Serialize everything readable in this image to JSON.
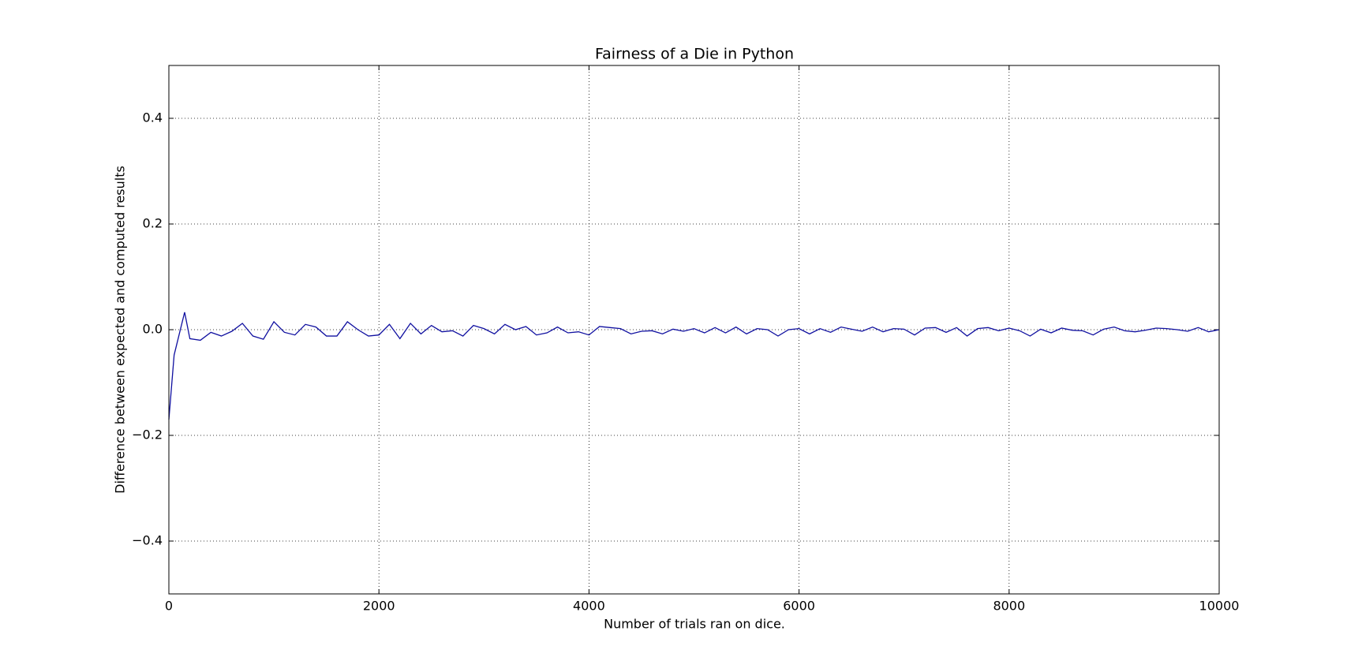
{
  "chart_data": {
    "type": "line",
    "title": "Fairness of a Die in Python",
    "xlabel": "Number of trials ran on dice.",
    "ylabel": "Difference between expected and computed results",
    "x": [
      0,
      50,
      150,
      200,
      300,
      400,
      500,
      600,
      700,
      800,
      900,
      1000,
      1100,
      1200,
      1300,
      1400,
      1500,
      1600,
      1700,
      1800,
      1900,
      2000,
      2100,
      2200,
      2300,
      2400,
      2500,
      2600,
      2700,
      2800,
      2900,
      3000,
      3100,
      3200,
      3300,
      3400,
      3500,
      3600,
      3700,
      3800,
      3900,
      4000,
      4100,
      4200,
      4300,
      4400,
      4500,
      4600,
      4700,
      4800,
      4900,
      5000,
      5100,
      5200,
      5300,
      5400,
      5500,
      5600,
      5700,
      5800,
      5900,
      6000,
      6100,
      6200,
      6300,
      6400,
      6500,
      6600,
      6700,
      6800,
      6900,
      7000,
      7100,
      7200,
      7300,
      7400,
      7500,
      7600,
      7700,
      7800,
      7900,
      8000,
      8100,
      8200,
      8300,
      8400,
      8500,
      8600,
      8700,
      8800,
      8900,
      9000,
      9100,
      9200,
      9300,
      9400,
      9500,
      9600,
      9700,
      9800,
      9900,
      10000
    ],
    "series": [
      {
        "color": "#1010a0",
        "values": [
          -0.17,
          -0.048,
          0.033,
          -0.017,
          -0.02,
          -0.005,
          -0.012,
          -0.003,
          0.012,
          -0.012,
          -0.018,
          0.015,
          -0.005,
          -0.01,
          0.01,
          0.005,
          -0.012,
          -0.012,
          0.015,
          0.0,
          -0.012,
          -0.01,
          0.01,
          -0.017,
          0.012,
          -0.008,
          0.008,
          -0.004,
          -0.002,
          -0.012,
          0.008,
          0.002,
          -0.008,
          0.01,
          0.0,
          0.006,
          -0.01,
          -0.006,
          0.005,
          -0.006,
          -0.004,
          -0.01,
          0.006,
          0.004,
          0.002,
          -0.008,
          -0.003,
          -0.002,
          -0.008,
          0.001,
          -0.003,
          0.002,
          -0.006,
          0.004,
          -0.006,
          0.005,
          -0.008,
          0.002,
          0.0,
          -0.012,
          0.0,
          0.002,
          -0.008,
          0.002,
          -0.005,
          0.005,
          0.001,
          -0.003,
          0.005,
          -0.004,
          0.002,
          0.001,
          -0.01,
          0.003,
          0.004,
          -0.005,
          0.004,
          -0.012,
          0.002,
          0.004,
          -0.002,
          0.003,
          -0.002,
          -0.012,
          0.001,
          -0.006,
          0.003,
          -0.001,
          -0.002,
          -0.01,
          0.001,
          0.005,
          -0.002,
          -0.004,
          -0.001,
          0.003,
          0.002,
          0.0,
          -0.003,
          0.004,
          -0.004,
          0.0
        ]
      }
    ],
    "xlim": [
      0,
      10000
    ],
    "xticks": [
      0,
      2000,
      4000,
      6000,
      8000,
      10000
    ],
    "ylim": [
      -0.5,
      0.5
    ],
    "yticks": [
      {
        "value": -0.4,
        "label": "−0.4"
      },
      {
        "value": -0.2,
        "label": "−0.2"
      },
      {
        "value": 0,
        "label": "0.0"
      },
      0.2,
      0.4
    ],
    "grid": true
  }
}
